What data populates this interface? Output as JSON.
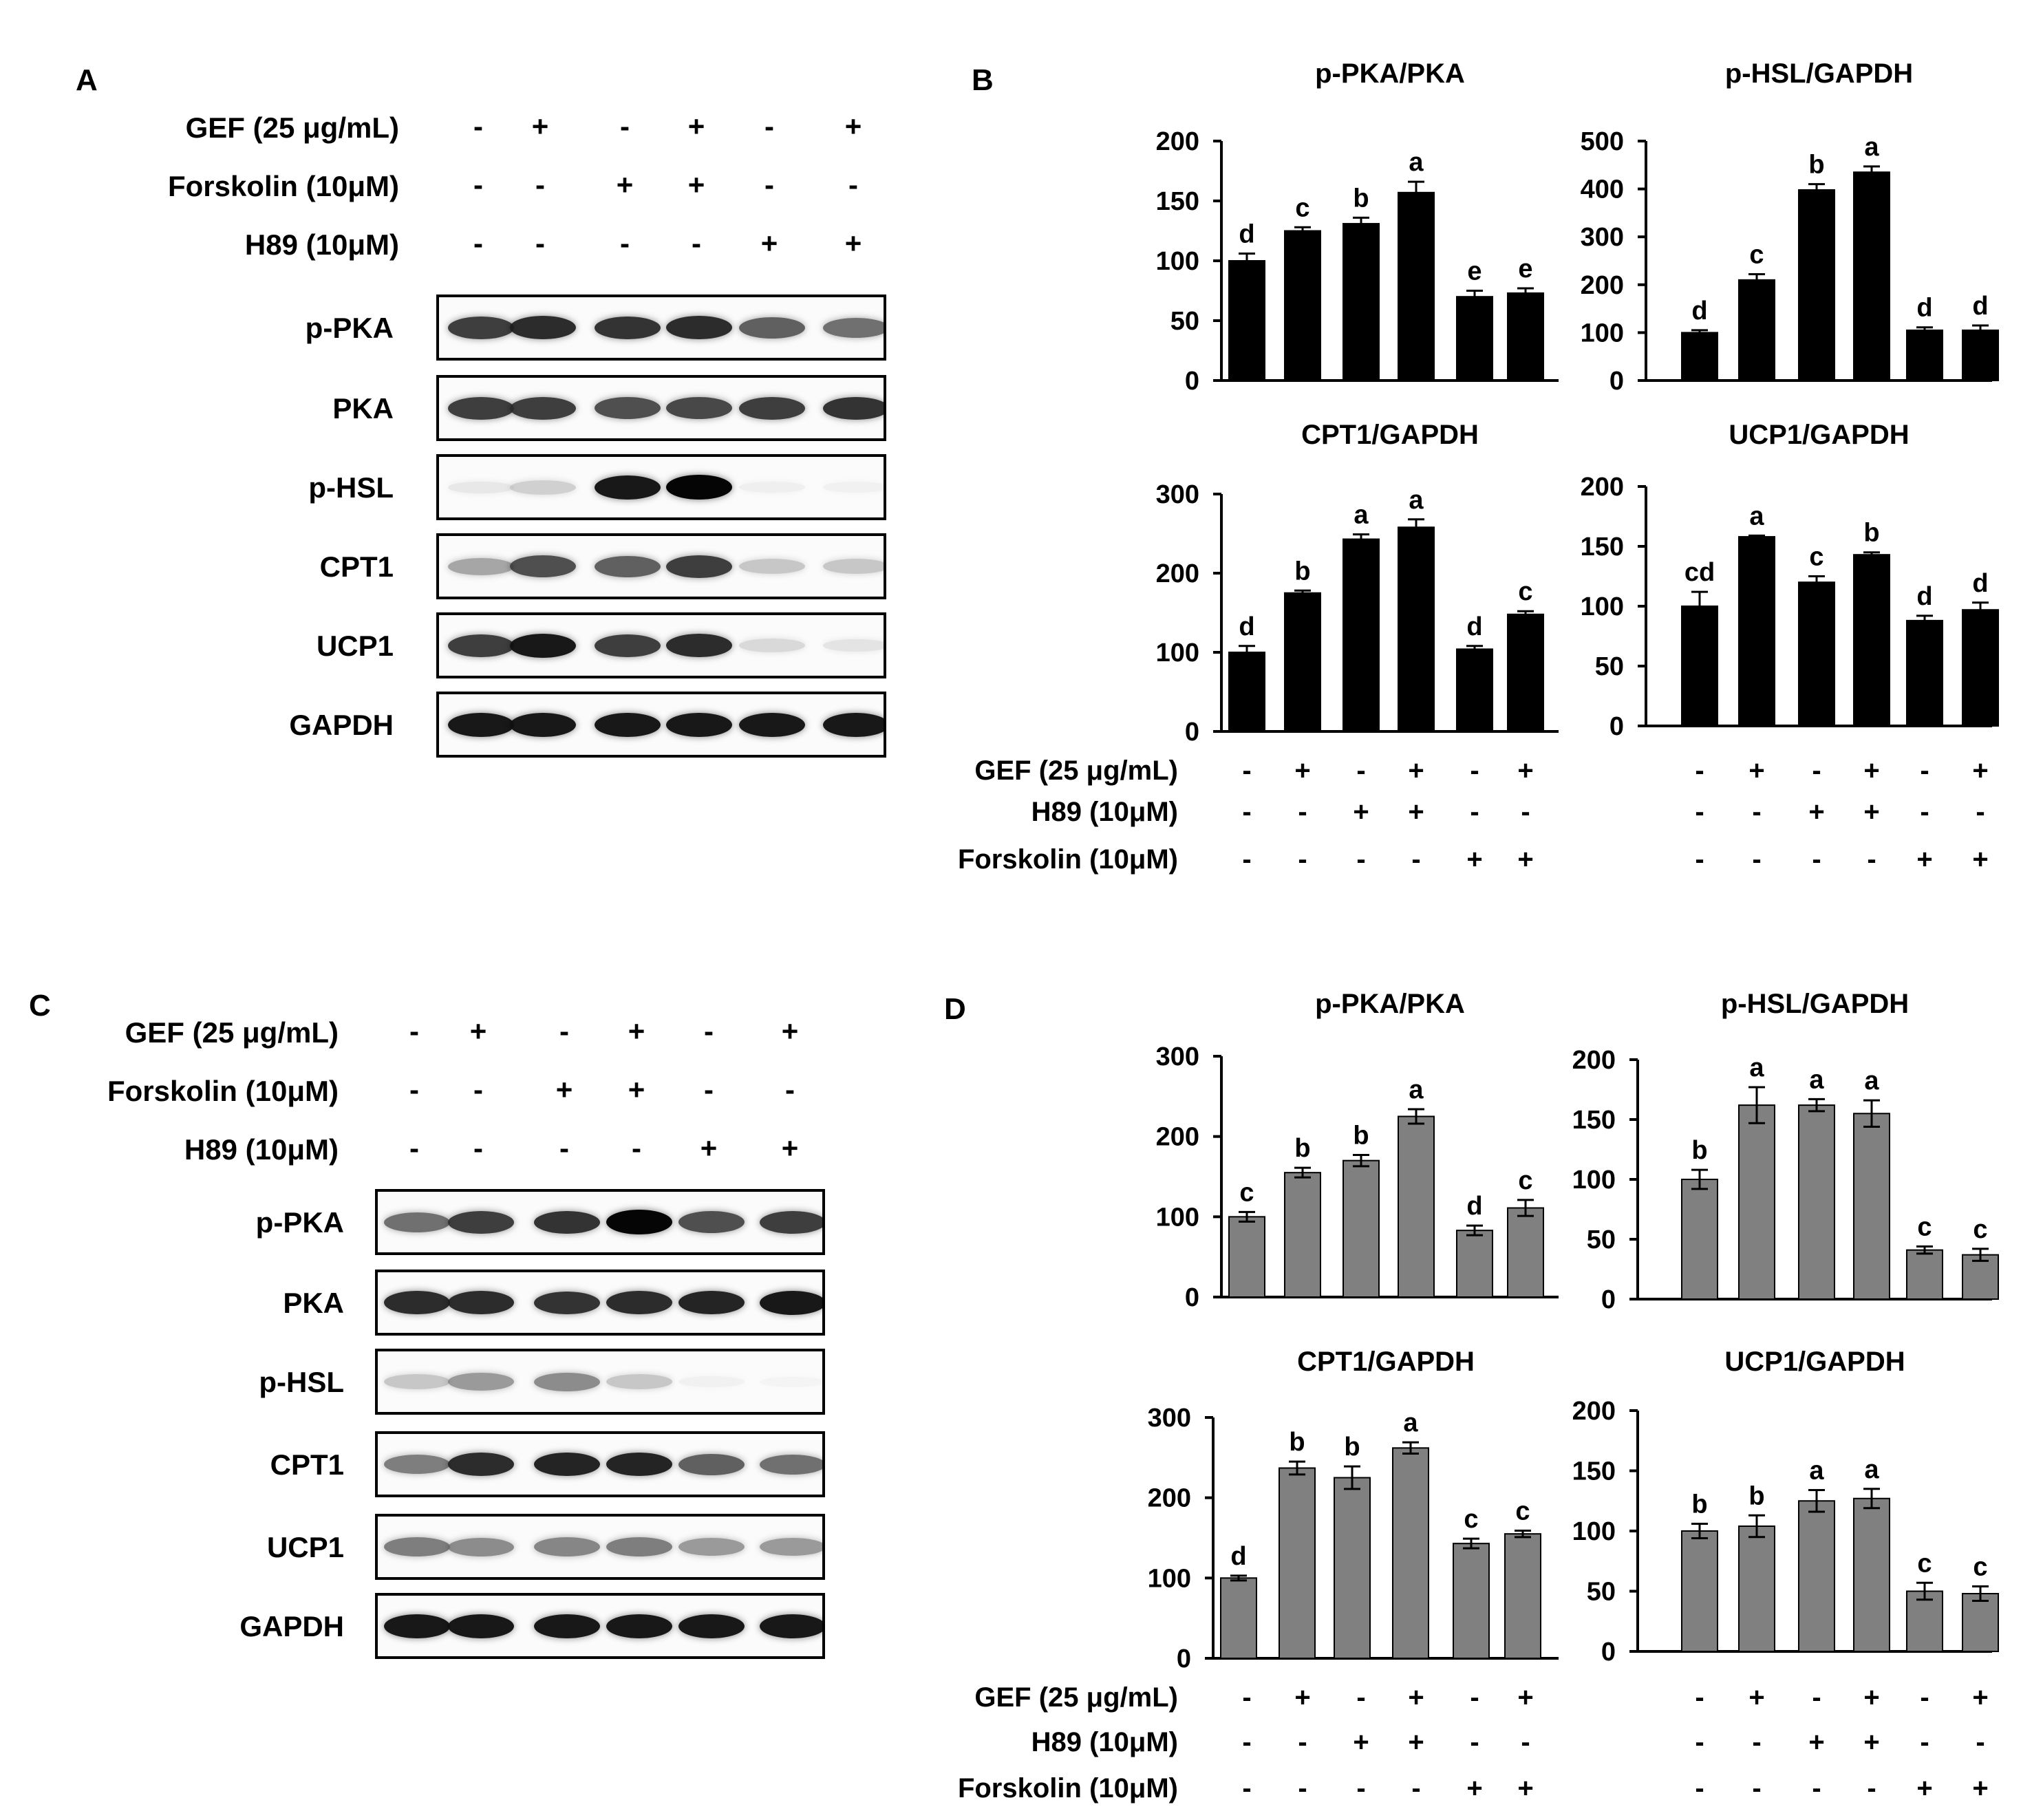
{
  "panels": {
    "A": "A",
    "B": "B",
    "C": "C",
    "D": "D"
  },
  "blot_panels": [
    {
      "id": "A",
      "treatments": [
        {
          "label": "GEF (25 μg/mL)",
          "signs": [
            "-",
            "+",
            "-",
            "+",
            "-",
            "+"
          ]
        },
        {
          "label": "Forskolin (10μM)",
          "signs": [
            "-",
            "-",
            "+",
            "+",
            "-",
            "-"
          ]
        },
        {
          "label": "H89 (10μM)",
          "signs": [
            "-",
            "-",
            "-",
            "-",
            "+",
            "+"
          ]
        }
      ],
      "proteins": [
        "p-PKA",
        "PKA",
        "p-HSL",
        "CPT1",
        "UCP1",
        "GAPDH"
      ],
      "band_intensity": [
        [
          0.85,
          0.9,
          0.88,
          0.9,
          0.75,
          0.7
        ],
        [
          0.85,
          0.85,
          0.8,
          0.82,
          0.85,
          0.88
        ],
        [
          0.15,
          0.3,
          0.95,
          1.0,
          0.1,
          0.08
        ],
        [
          0.5,
          0.8,
          0.75,
          0.85,
          0.35,
          0.35
        ],
        [
          0.85,
          0.95,
          0.85,
          0.9,
          0.25,
          0.18
        ],
        [
          0.95,
          0.95,
          0.95,
          0.95,
          0.95,
          0.95
        ]
      ]
    },
    {
      "id": "C",
      "treatments": [
        {
          "label": "GEF (25 μg/mL)",
          "signs": [
            "-",
            "+",
            "-",
            "+",
            "-",
            "+"
          ]
        },
        {
          "label": "Forskolin (10μM)",
          "signs": [
            "-",
            "-",
            "+",
            "+",
            "-",
            "-"
          ]
        },
        {
          "label": "H89 (10μM)",
          "signs": [
            "-",
            "-",
            "-",
            "-",
            "+",
            "+"
          ]
        }
      ],
      "proteins": [
        "p-PKA",
        "PKA",
        "p-HSL",
        "CPT1",
        "UCP1",
        "GAPDH"
      ],
      "band_intensity": [
        [
          0.7,
          0.85,
          0.88,
          1.0,
          0.8,
          0.85
        ],
        [
          0.9,
          0.9,
          0.88,
          0.9,
          0.92,
          0.95
        ],
        [
          0.35,
          0.55,
          0.6,
          0.35,
          0.08,
          0.05
        ],
        [
          0.65,
          0.9,
          0.92,
          0.92,
          0.75,
          0.7
        ],
        [
          0.65,
          0.6,
          0.62,
          0.65,
          0.55,
          0.55
        ],
        [
          0.95,
          0.95,
          0.95,
          0.95,
          0.95,
          0.95
        ]
      ]
    }
  ],
  "chart_groups": [
    {
      "id": "B",
      "bar_color": "#000000",
      "treatment_table": [
        {
          "label": "GEF (25 μg/mL)",
          "signs": [
            "-",
            "+",
            "-",
            "+",
            "-",
            "+"
          ]
        },
        {
          "label": "H89 (10μM)",
          "signs": [
            "-",
            "-",
            "+",
            "+",
            "-",
            "-"
          ]
        },
        {
          "label": "Forskolin (10μM)",
          "signs": [
            "-",
            "-",
            "-",
            "-",
            "+",
            "+"
          ]
        }
      ]
    },
    {
      "id": "D",
      "bar_color": "#808080",
      "treatment_table": [
        {
          "label": "GEF (25 μg/mL)",
          "signs": [
            "-",
            "+",
            "-",
            "+",
            "-",
            "+"
          ]
        },
        {
          "label": "H89 (10μM)",
          "signs": [
            "-",
            "-",
            "+",
            "+",
            "-",
            "-"
          ]
        },
        {
          "label": "Forskolin (10μM)",
          "signs": [
            "-",
            "-",
            "-",
            "-",
            "+",
            "+"
          ]
        }
      ]
    }
  ],
  "chart_data": [
    {
      "panel": "B",
      "type": "bar",
      "title": "p-PKA/PKA",
      "ylim": [
        0,
        200
      ],
      "yticks": [
        0,
        50,
        100,
        150,
        200
      ],
      "values": [
        100,
        125,
        131,
        157,
        70,
        73
      ],
      "errors": [
        6,
        3,
        5,
        9,
        5,
        4
      ],
      "labels": [
        "d",
        "c",
        "b",
        "a",
        "e",
        "e"
      ]
    },
    {
      "panel": "B",
      "type": "bar",
      "title": "p-HSL/GAPDH",
      "ylim": [
        0,
        500
      ],
      "yticks": [
        0,
        100,
        200,
        300,
        400,
        500
      ],
      "values": [
        100,
        210,
        398,
        435,
        105,
        105
      ],
      "errors": [
        5,
        12,
        12,
        12,
        6,
        10
      ],
      "labels": [
        "d",
        "c",
        "b",
        "a",
        "d",
        "d"
      ]
    },
    {
      "panel": "B",
      "type": "bar",
      "title": "CPT1/GAPDH",
      "ylim": [
        0,
        300
      ],
      "yticks": [
        0,
        100,
        200,
        300
      ],
      "values": [
        100,
        175,
        243,
        258,
        104,
        148
      ],
      "errors": [
        8,
        3,
        6,
        10,
        4,
        4
      ],
      "labels": [
        "d",
        "b",
        "a",
        "a",
        "d",
        "c"
      ]
    },
    {
      "panel": "B",
      "type": "bar",
      "title": "UCP1/GAPDH",
      "ylim": [
        0,
        200
      ],
      "yticks": [
        0,
        50,
        100,
        150,
        200
      ],
      "values": [
        100,
        158,
        120,
        143,
        88,
        97
      ],
      "errors": [
        12,
        1,
        5,
        2,
        4,
        6
      ],
      "labels": [
        "cd",
        "a",
        "c",
        "b",
        "d",
        "d"
      ]
    },
    {
      "panel": "D",
      "type": "bar",
      "title": "p-PKA/PKA",
      "ylim": [
        0,
        300
      ],
      "yticks": [
        0,
        100,
        200,
        300
      ],
      "values": [
        100,
        155,
        170,
        225,
        83,
        111
      ],
      "errors": [
        6,
        6,
        7,
        9,
        6,
        10
      ],
      "labels": [
        "c",
        "b",
        "b",
        "a",
        "d",
        "c"
      ]
    },
    {
      "panel": "D",
      "type": "bar",
      "title": "p-HSL/GAPDH",
      "ylim": [
        0,
        200
      ],
      "yticks": [
        0,
        50,
        100,
        150,
        200
      ],
      "values": [
        100,
        162,
        162,
        155,
        41,
        37
      ],
      "errors": [
        8,
        15,
        5,
        11,
        3,
        5
      ],
      "labels": [
        "b",
        "a",
        "a",
        "a",
        "c",
        "c"
      ]
    },
    {
      "panel": "D",
      "type": "bar",
      "title": "CPT1/GAPDH",
      "ylim": [
        0,
        300
      ],
      "yticks": [
        0,
        100,
        200,
        300
      ],
      "values": [
        100,
        237,
        225,
        262,
        143,
        155
      ],
      "errors": [
        3,
        8,
        14,
        7,
        6,
        4
      ],
      "labels": [
        "d",
        "b",
        "b",
        "a",
        "c",
        "c"
      ]
    },
    {
      "panel": "D",
      "type": "bar",
      "title": "UCP1/GAPDH",
      "ylim": [
        0,
        200
      ],
      "yticks": [
        0,
        50,
        100,
        150,
        200
      ],
      "values": [
        100,
        104,
        125,
        127,
        50,
        48
      ],
      "errors": [
        6,
        9,
        9,
        8,
        7,
        6
      ],
      "labels": [
        "b",
        "b",
        "a",
        "a",
        "c",
        "c"
      ]
    }
  ]
}
